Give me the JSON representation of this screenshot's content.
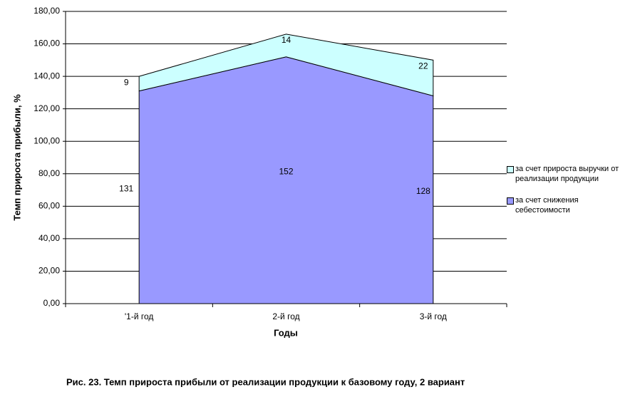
{
  "chart_data": {
    "type": "area",
    "stacked": true,
    "title": "Рис. 23. Темп прироста прибыли от реализации продукции к базовому году, 2 вариант",
    "x_label": "Годы",
    "y_label": "Темп прироста прибыли, %",
    "categories": [
      "'1-й год",
      "2-й год",
      "3-й год"
    ],
    "series": [
      {
        "name": "за счет снижения себестоимости",
        "color": "#9999ff",
        "values": [
          131,
          152,
          128
        ]
      },
      {
        "name": "за счет прироста выручки от реализации продукции",
        "color": "#ccffff",
        "values": [
          9,
          14,
          22
        ]
      }
    ],
    "ylim": [
      0,
      180
    ],
    "yticks": [
      {
        "value": 0,
        "label": "0,00"
      },
      {
        "value": 20,
        "label": "20,00"
      },
      {
        "value": 40,
        "label": "40,00"
      },
      {
        "value": 60,
        "label": "60,00"
      },
      {
        "value": 80,
        "label": "80,00"
      },
      {
        "value": 100,
        "label": "100,00"
      },
      {
        "value": 120,
        "label": "120,00"
      },
      {
        "value": 140,
        "label": "140,00"
      },
      {
        "value": 160,
        "label": "160,00"
      },
      {
        "value": 180,
        "label": "180,00"
      }
    ],
    "grid": true,
    "legend": "right"
  }
}
